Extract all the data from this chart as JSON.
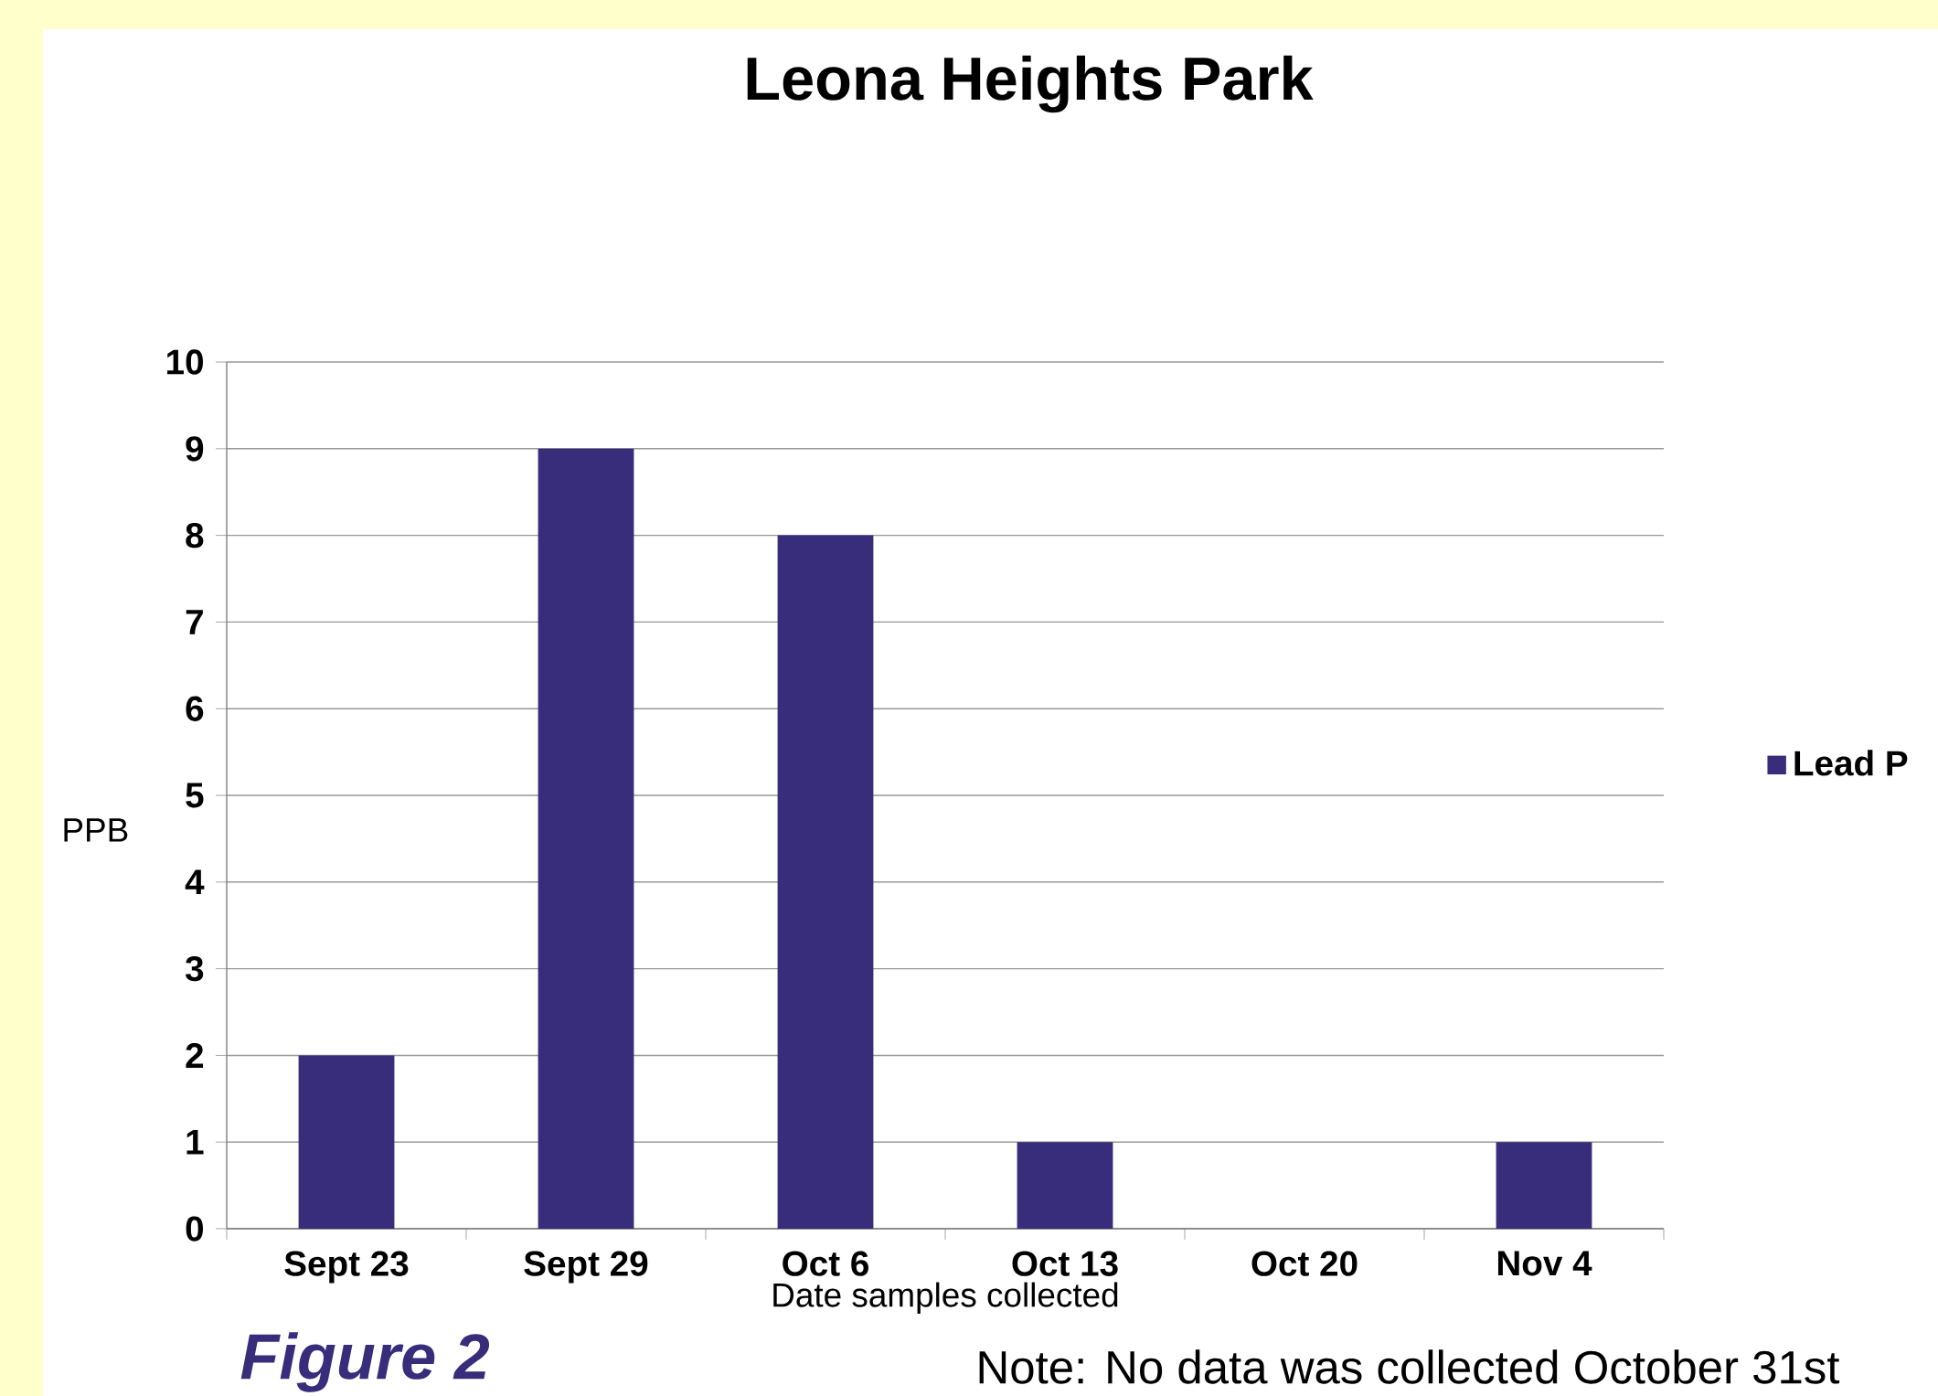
{
  "chart_data": {
    "type": "bar",
    "title": "Leona Heights Park",
    "xlabel": "Date samples collected",
    "ylabel": "PPB",
    "categories": [
      "Sept 23",
      "Sept 29",
      "Oct 6",
      "Oct 13",
      "Oct 20",
      "Nov 4"
    ],
    "series": [
      {
        "name": "Lead P",
        "color": "#372d7a",
        "values": [
          2,
          9,
          8,
          1,
          0,
          1
        ]
      }
    ],
    "ylim": [
      0,
      10
    ],
    "yticks": [
      0,
      1,
      2,
      3,
      4,
      5,
      6,
      7,
      8,
      9,
      10
    ],
    "grid": "y",
    "legend": "right",
    "annotations": [
      "Figure 2",
      "Note: No data was collected October 31st"
    ]
  }
}
